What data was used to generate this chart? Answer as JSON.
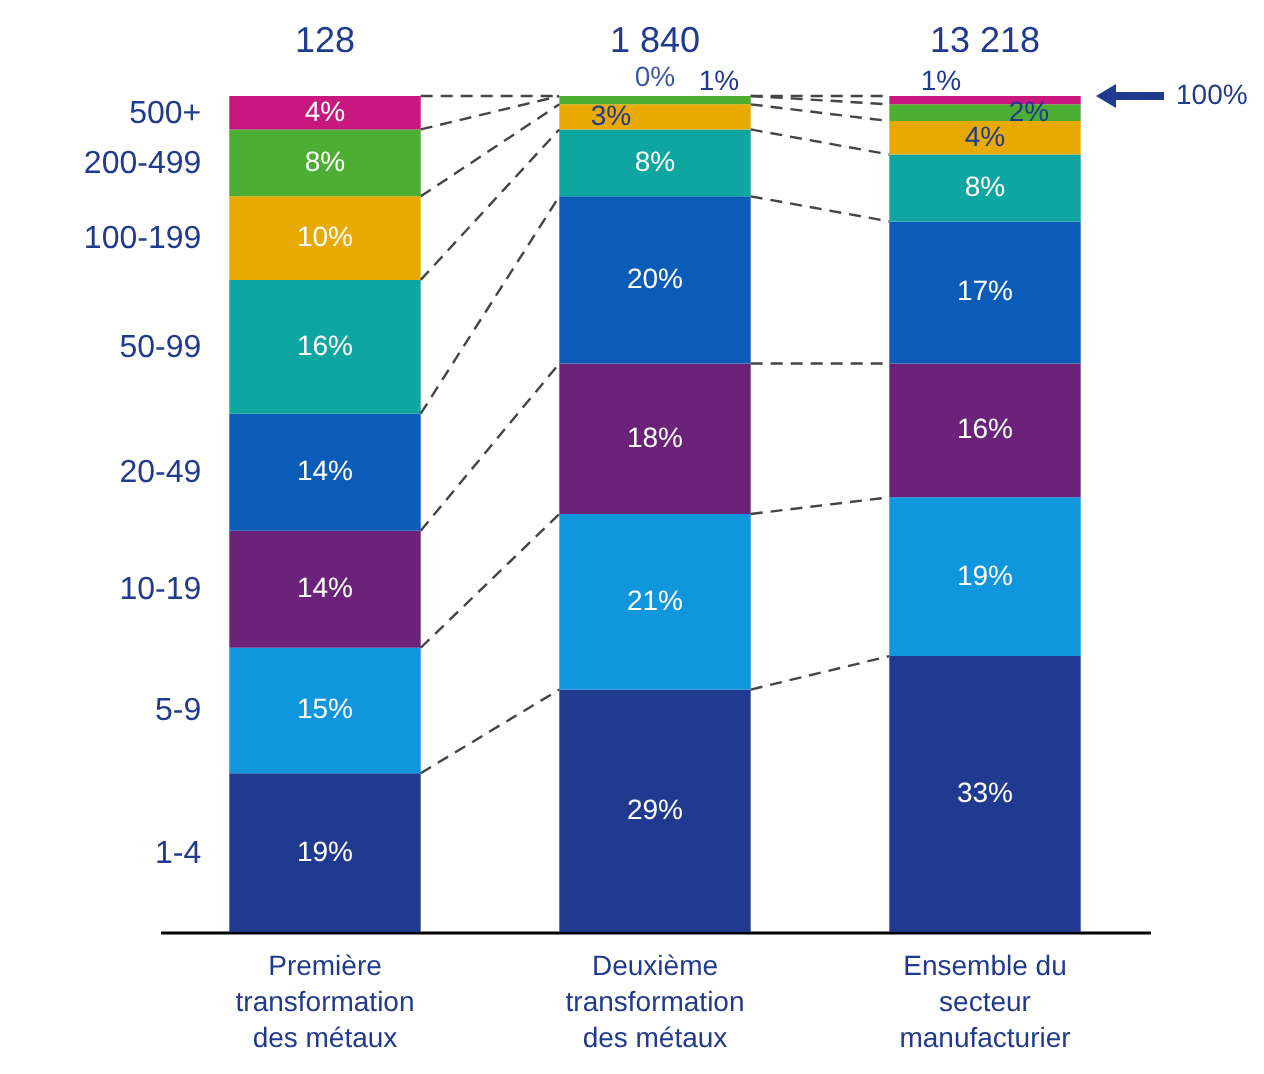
{
  "chart_data": {
    "type": "bar",
    "stacked": true,
    "legend": false,
    "categories": [
      "Première transformation des métaux",
      "Deuxième transformation des métaux",
      "Ensemble du secteur manufacturier"
    ],
    "series": [
      {
        "name": "1-4",
        "color": "#1f3a8f",
        "values": [
          19,
          29,
          33
        ],
        "value_labels": [
          "19%",
          "29%",
          "33%"
        ]
      },
      {
        "name": "5-9",
        "color": "#0f96dc",
        "values": [
          15,
          21,
          19
        ],
        "value_labels": [
          "15%",
          "21%",
          "19%"
        ]
      },
      {
        "name": "10-19",
        "color": "#6b2379",
        "values": [
          14,
          18,
          16
        ],
        "value_labels": [
          "14%",
          "18%",
          "16%"
        ]
      },
      {
        "name": "20-49",
        "color": "#0a5cb8",
        "values": [
          14,
          20,
          17
        ],
        "value_labels": [
          "14%",
          "20%",
          "17%"
        ]
      },
      {
        "name": "50-99",
        "color": "#0fa5a0",
        "values": [
          16,
          8,
          8
        ],
        "value_labels": [
          "16%",
          "8%",
          "8%"
        ]
      },
      {
        "name": "100-199",
        "color": "#e8a900",
        "values": [
          10,
          3,
          4
        ],
        "value_labels": [
          "10%",
          "3%",
          "4%"
        ]
      },
      {
        "name": "200-499",
        "color": "#4cae32",
        "values": [
          8,
          1,
          2
        ],
        "value_labels": [
          "8%",
          "1%",
          "2%"
        ]
      },
      {
        "name": "500+",
        "color": "#c8177e",
        "values": [
          4,
          0,
          1
        ],
        "value_labels": [
          "4%",
          "0%",
          "1%"
        ]
      }
    ],
    "annotations": [
      "128",
      "1 840",
      "13 218",
      "100%"
    ]
  }
}
